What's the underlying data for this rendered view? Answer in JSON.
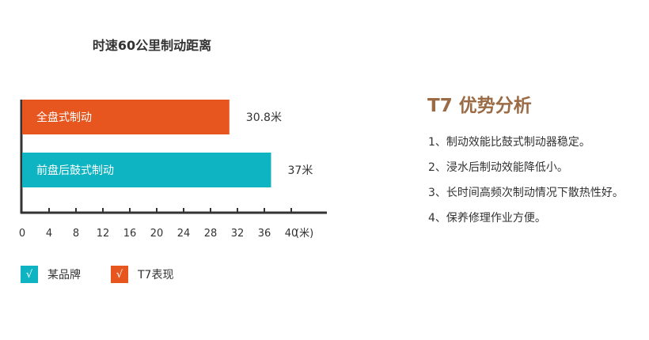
{
  "chart_data": {
    "type": "bar",
    "orientation": "horizontal",
    "title": "时速60公里制动距离",
    "categories": [
      "全盘式制动",
      "前盘后鼓式制动"
    ],
    "values": [
      30.8,
      37
    ],
    "value_labels": [
      "30.8米",
      "37米"
    ],
    "bar_colors": [
      "#e8561f",
      "#0fb4c2"
    ],
    "x_ticks": [
      "0",
      "4",
      "8",
      "12",
      "16",
      "20",
      "24",
      "28",
      "32",
      "36",
      "40"
    ],
    "x_unit": "(米)",
    "xlim": [
      0,
      43
    ],
    "grid": false,
    "legend_position": "bottom-left",
    "legend": [
      {
        "marker": "√",
        "label": "某品牌",
        "color": "#0fb4c2"
      },
      {
        "marker": "√",
        "label": "T7表现",
        "color": "#e8561f"
      }
    ]
  },
  "panel": {
    "title": "T7 优势分析",
    "title_color": "#9a6b45",
    "items": [
      "1、制动效能比鼓式制动器稳定。",
      "2、浸水后制动效能降低小。",
      "3、长时间高频次制动情况下散热性好。",
      "4、保养修理作业方便。"
    ]
  }
}
